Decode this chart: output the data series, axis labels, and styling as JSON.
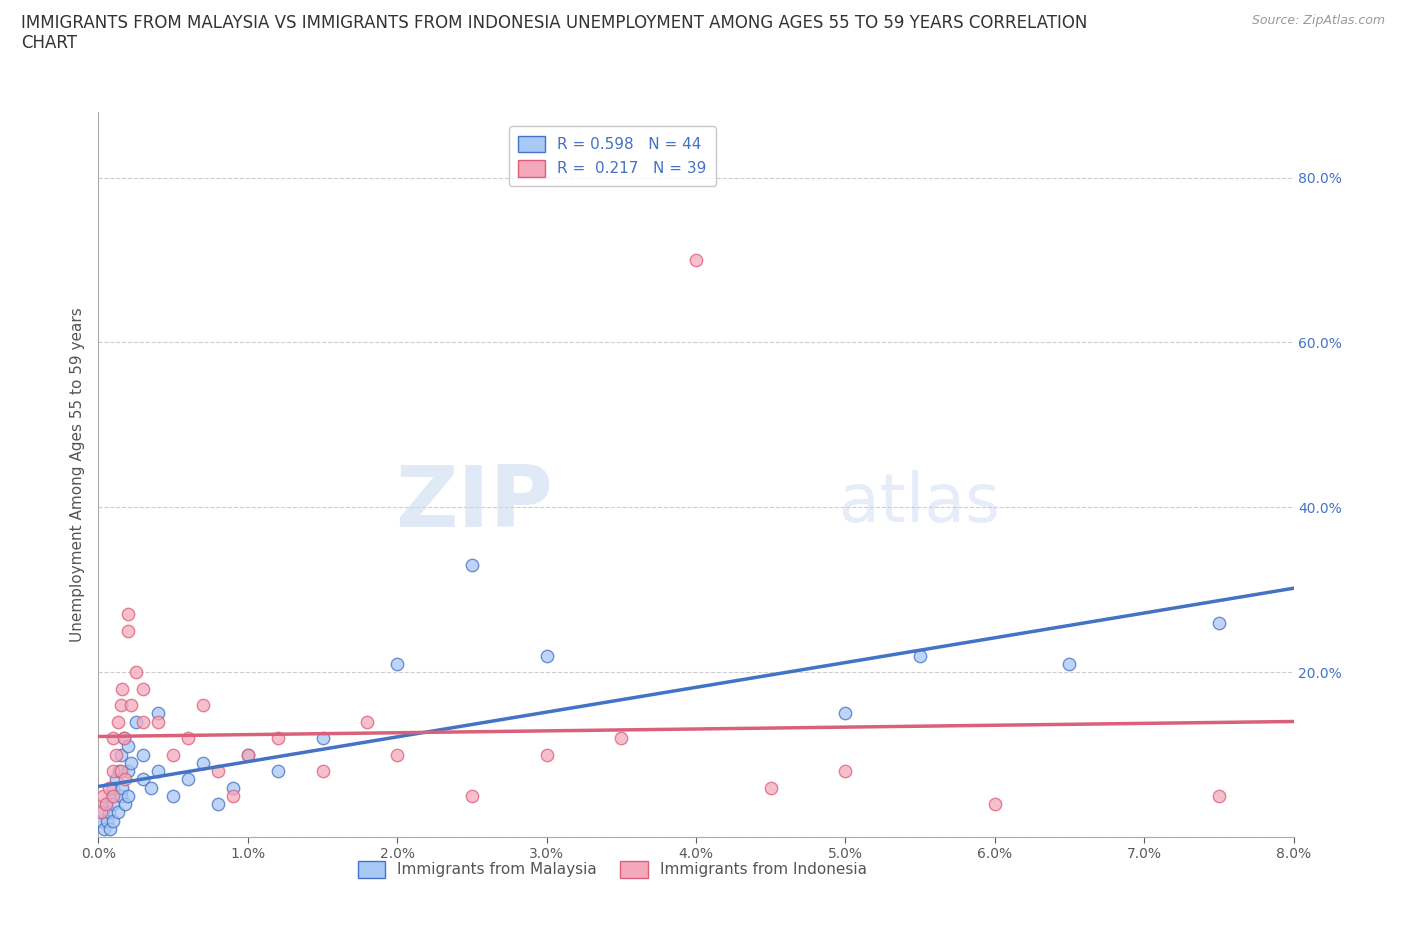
{
  "title_line1": "IMMIGRANTS FROM MALAYSIA VS IMMIGRANTS FROM INDONESIA UNEMPLOYMENT AMONG AGES 55 TO 59 YEARS CORRELATION",
  "title_line2": "CHART",
  "source": "Source: ZipAtlas.com",
  "ylabel": "Unemployment Among Ages 55 to 59 years",
  "xlim": [
    0.0,
    0.08
  ],
  "ylim": [
    0.0,
    0.88
  ],
  "xticks": [
    0.0,
    0.01,
    0.02,
    0.03,
    0.04,
    0.05,
    0.06,
    0.07,
    0.08
  ],
  "xticklabels": [
    "0.0%",
    "1.0%",
    "2.0%",
    "3.0%",
    "4.0%",
    "5.0%",
    "6.0%",
    "7.0%",
    "8.0%"
  ],
  "yticks": [
    0.0,
    0.2,
    0.4,
    0.6,
    0.8
  ],
  "yticklabels": [
    "",
    "20.0%",
    "40.0%",
    "60.0%",
    "80.0%"
  ],
  "malaysia_color": "#a8c8f5",
  "indonesia_color": "#f5a8bc",
  "malaysia_line_color": "#4472c4",
  "indonesia_line_color": "#d9607a",
  "R_malaysia": "0.598",
  "N_malaysia": "44",
  "R_indonesia": "0.217",
  "N_indonesia": "39",
  "watermark_zip": "ZIP",
  "watermark_atlas": "atlas",
  "background_color": "#ffffff",
  "grid_color": "#c8c8c8",
  "malaysia_x": [
    0.0002,
    0.0003,
    0.0004,
    0.0005,
    0.0006,
    0.0007,
    0.0008,
    0.0009,
    0.001,
    0.001,
    0.001,
    0.0012,
    0.0013,
    0.0014,
    0.0015,
    0.0015,
    0.0016,
    0.0017,
    0.0018,
    0.002,
    0.002,
    0.002,
    0.0022,
    0.0025,
    0.003,
    0.003,
    0.0035,
    0.004,
    0.004,
    0.005,
    0.006,
    0.007,
    0.008,
    0.009,
    0.01,
    0.012,
    0.015,
    0.02,
    0.025,
    0.03,
    0.05,
    0.055,
    0.065,
    0.075
  ],
  "malaysia_y": [
    0.02,
    0.03,
    0.01,
    0.04,
    0.02,
    0.03,
    0.01,
    0.05,
    0.04,
    0.06,
    0.02,
    0.07,
    0.03,
    0.08,
    0.05,
    0.1,
    0.06,
    0.12,
    0.04,
    0.08,
    0.05,
    0.11,
    0.09,
    0.14,
    0.07,
    0.1,
    0.06,
    0.08,
    0.15,
    0.05,
    0.07,
    0.09,
    0.04,
    0.06,
    0.1,
    0.08,
    0.12,
    0.21,
    0.33,
    0.22,
    0.15,
    0.22,
    0.21,
    0.26
  ],
  "indonesia_x": [
    0.0002,
    0.0003,
    0.0005,
    0.0007,
    0.001,
    0.001,
    0.001,
    0.0012,
    0.0013,
    0.0015,
    0.0015,
    0.0016,
    0.0017,
    0.0018,
    0.002,
    0.002,
    0.0022,
    0.0025,
    0.003,
    0.003,
    0.004,
    0.005,
    0.006,
    0.007,
    0.008,
    0.009,
    0.01,
    0.012,
    0.015,
    0.018,
    0.02,
    0.025,
    0.03,
    0.035,
    0.04,
    0.045,
    0.05,
    0.06,
    0.075
  ],
  "indonesia_y": [
    0.03,
    0.05,
    0.04,
    0.06,
    0.08,
    0.12,
    0.05,
    0.1,
    0.14,
    0.16,
    0.08,
    0.18,
    0.12,
    0.07,
    0.25,
    0.27,
    0.16,
    0.2,
    0.14,
    0.18,
    0.14,
    0.1,
    0.12,
    0.16,
    0.08,
    0.05,
    0.1,
    0.12,
    0.08,
    0.14,
    0.1,
    0.05,
    0.1,
    0.12,
    0.7,
    0.06,
    0.08,
    0.04,
    0.05
  ],
  "title_fontsize": 12,
  "axis_label_fontsize": 11,
  "tick_fontsize": 10,
  "legend_fontsize": 11,
  "source_fontsize": 9
}
